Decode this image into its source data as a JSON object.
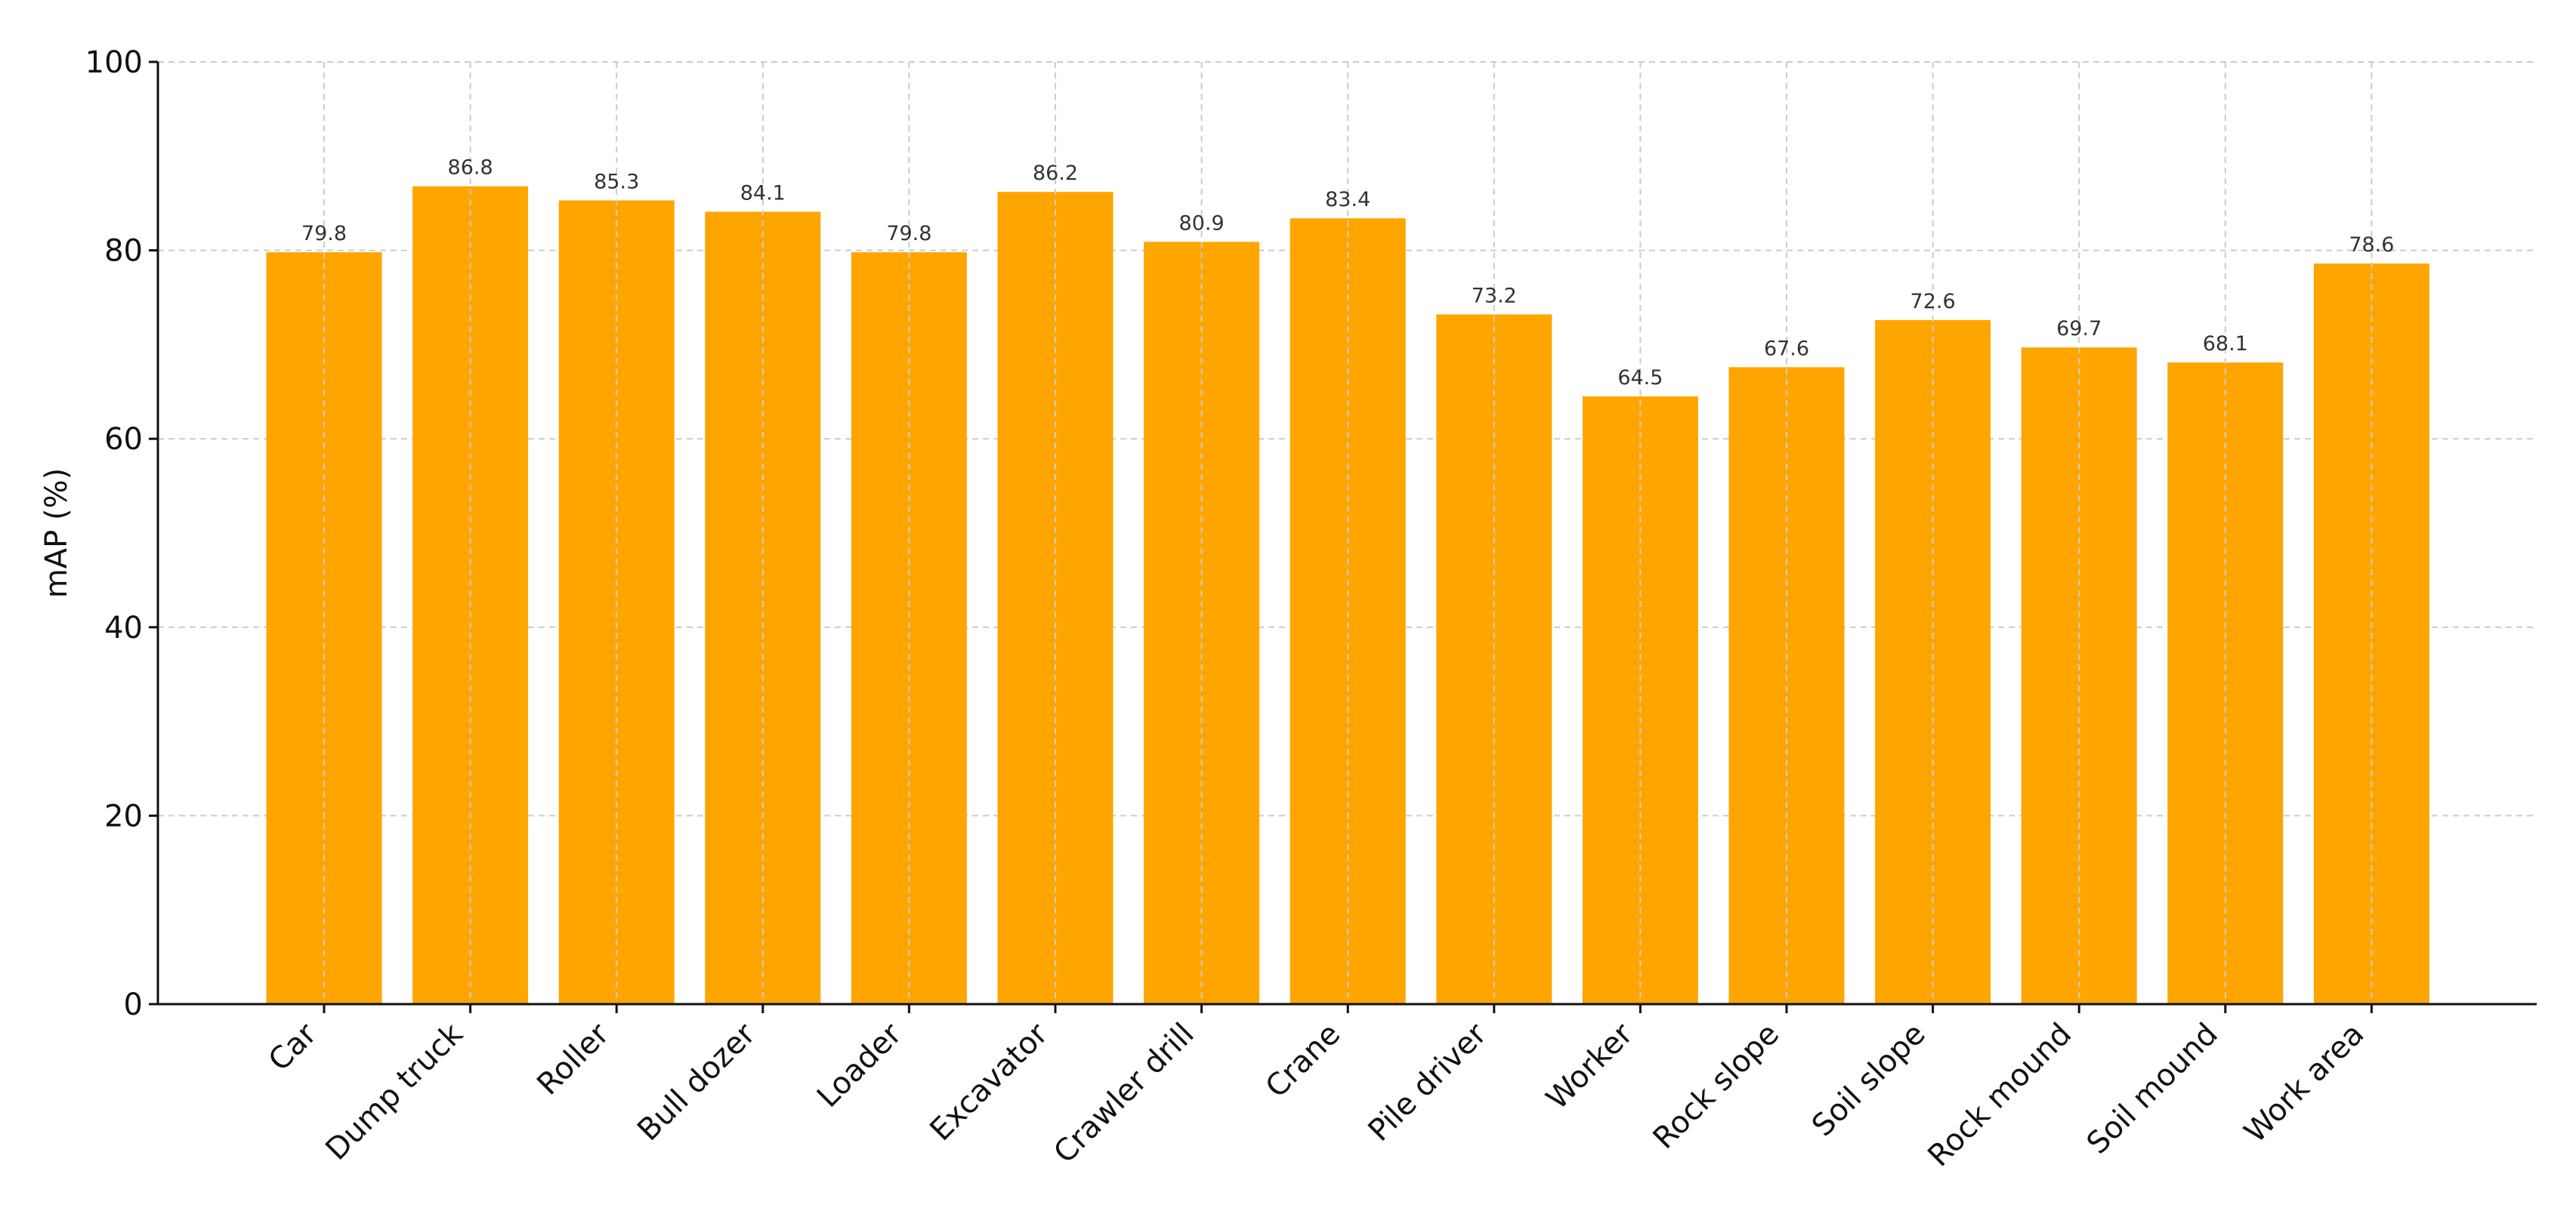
{
  "chart_data": {
    "type": "bar",
    "categories": [
      "Car",
      "Dump truck",
      "Roller",
      "Bull dozer",
      "Loader",
      "Excavator",
      "Crawler drill",
      "Crane",
      "Pile driver",
      "Worker",
      "Rock slope",
      "Soil slope",
      "Rock mound",
      "Soil mound",
      "Work area"
    ],
    "values": [
      79.8,
      86.8,
      85.3,
      84.1,
      79.8,
      86.2,
      80.9,
      83.4,
      73.2,
      64.5,
      67.6,
      72.6,
      69.7,
      68.1,
      78.6
    ],
    "data_labels": [
      "79.8",
      "86.8",
      "85.3",
      "84.1",
      "79.8",
      "86.2",
      "80.9",
      "83.4",
      "73.2",
      "64.5",
      "67.6",
      "72.6",
      "69.7",
      "68.1",
      "78.6"
    ],
    "title": "",
    "xlabel": "",
    "ylabel": "mAP (%)",
    "ylim": [
      0,
      100
    ],
    "yticks": [
      0,
      20,
      40,
      60,
      80,
      100
    ],
    "ytick_labels": [
      "0",
      "20",
      "40",
      "60",
      "80",
      "100"
    ],
    "grid": true,
    "bar_color": "#FFA500"
  }
}
